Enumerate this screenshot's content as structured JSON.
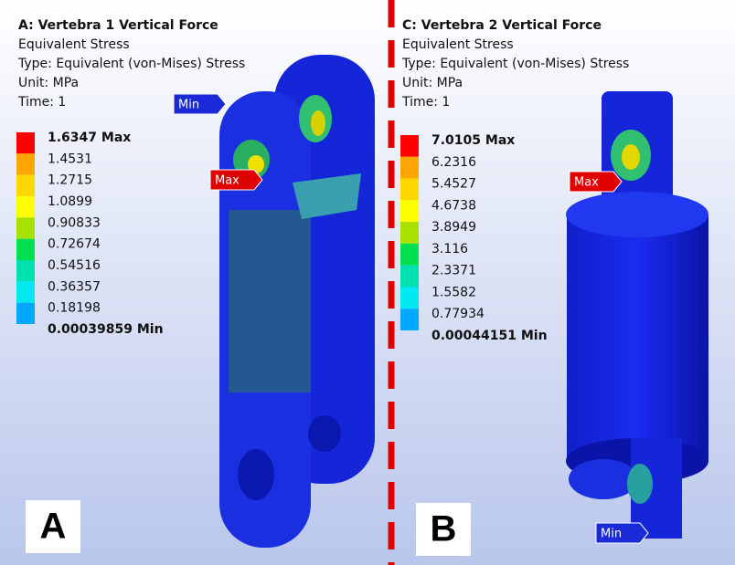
{
  "panels": [
    {
      "title": "A: Vertebra 1 Vertical Force",
      "lines": [
        "Equivalent Stress",
        "Type: Equivalent (von-Mises) Stress",
        "Unit: MPa",
        "Time: 1"
      ],
      "legend": {
        "labels": [
          "1.6347 Max",
          "1.4531",
          "1.2715",
          "1.0899",
          "0.90833",
          "0.72674",
          "0.54516",
          "0.36357",
          "0.18198",
          "0.00039859 Min"
        ],
        "colors": [
          "#ff0000",
          "#ffa500",
          "#ffd700",
          "#ffff00",
          "#a8e000",
          "#00e050",
          "#00e0b0",
          "#00e8f0",
          "#00a8ff",
          "#0000ff"
        ]
      },
      "max_flag": "Max",
      "min_flag": "Min",
      "letter": "A"
    },
    {
      "title": "C: Vertebra 2 Vertical Force",
      "lines": [
        "Equivalent Stress",
        "Type: Equivalent (von-Mises) Stress",
        "Unit: MPa",
        "Time: 1"
      ],
      "legend": {
        "labels": [
          "7.0105 Max",
          "6.2316",
          "5.4527",
          "4.6738",
          "3.8949",
          "3.116",
          "2.3371",
          "1.5582",
          "0.77934",
          "0.00044151 Min"
        ],
        "colors": [
          "#ff0000",
          "#ffa500",
          "#ffd700",
          "#ffff00",
          "#a8e000",
          "#00e050",
          "#00e0b0",
          "#00e8f0",
          "#00a8ff",
          "#0000ff"
        ]
      },
      "max_flag": "Max",
      "min_flag": "Min",
      "letter": "B"
    }
  ]
}
